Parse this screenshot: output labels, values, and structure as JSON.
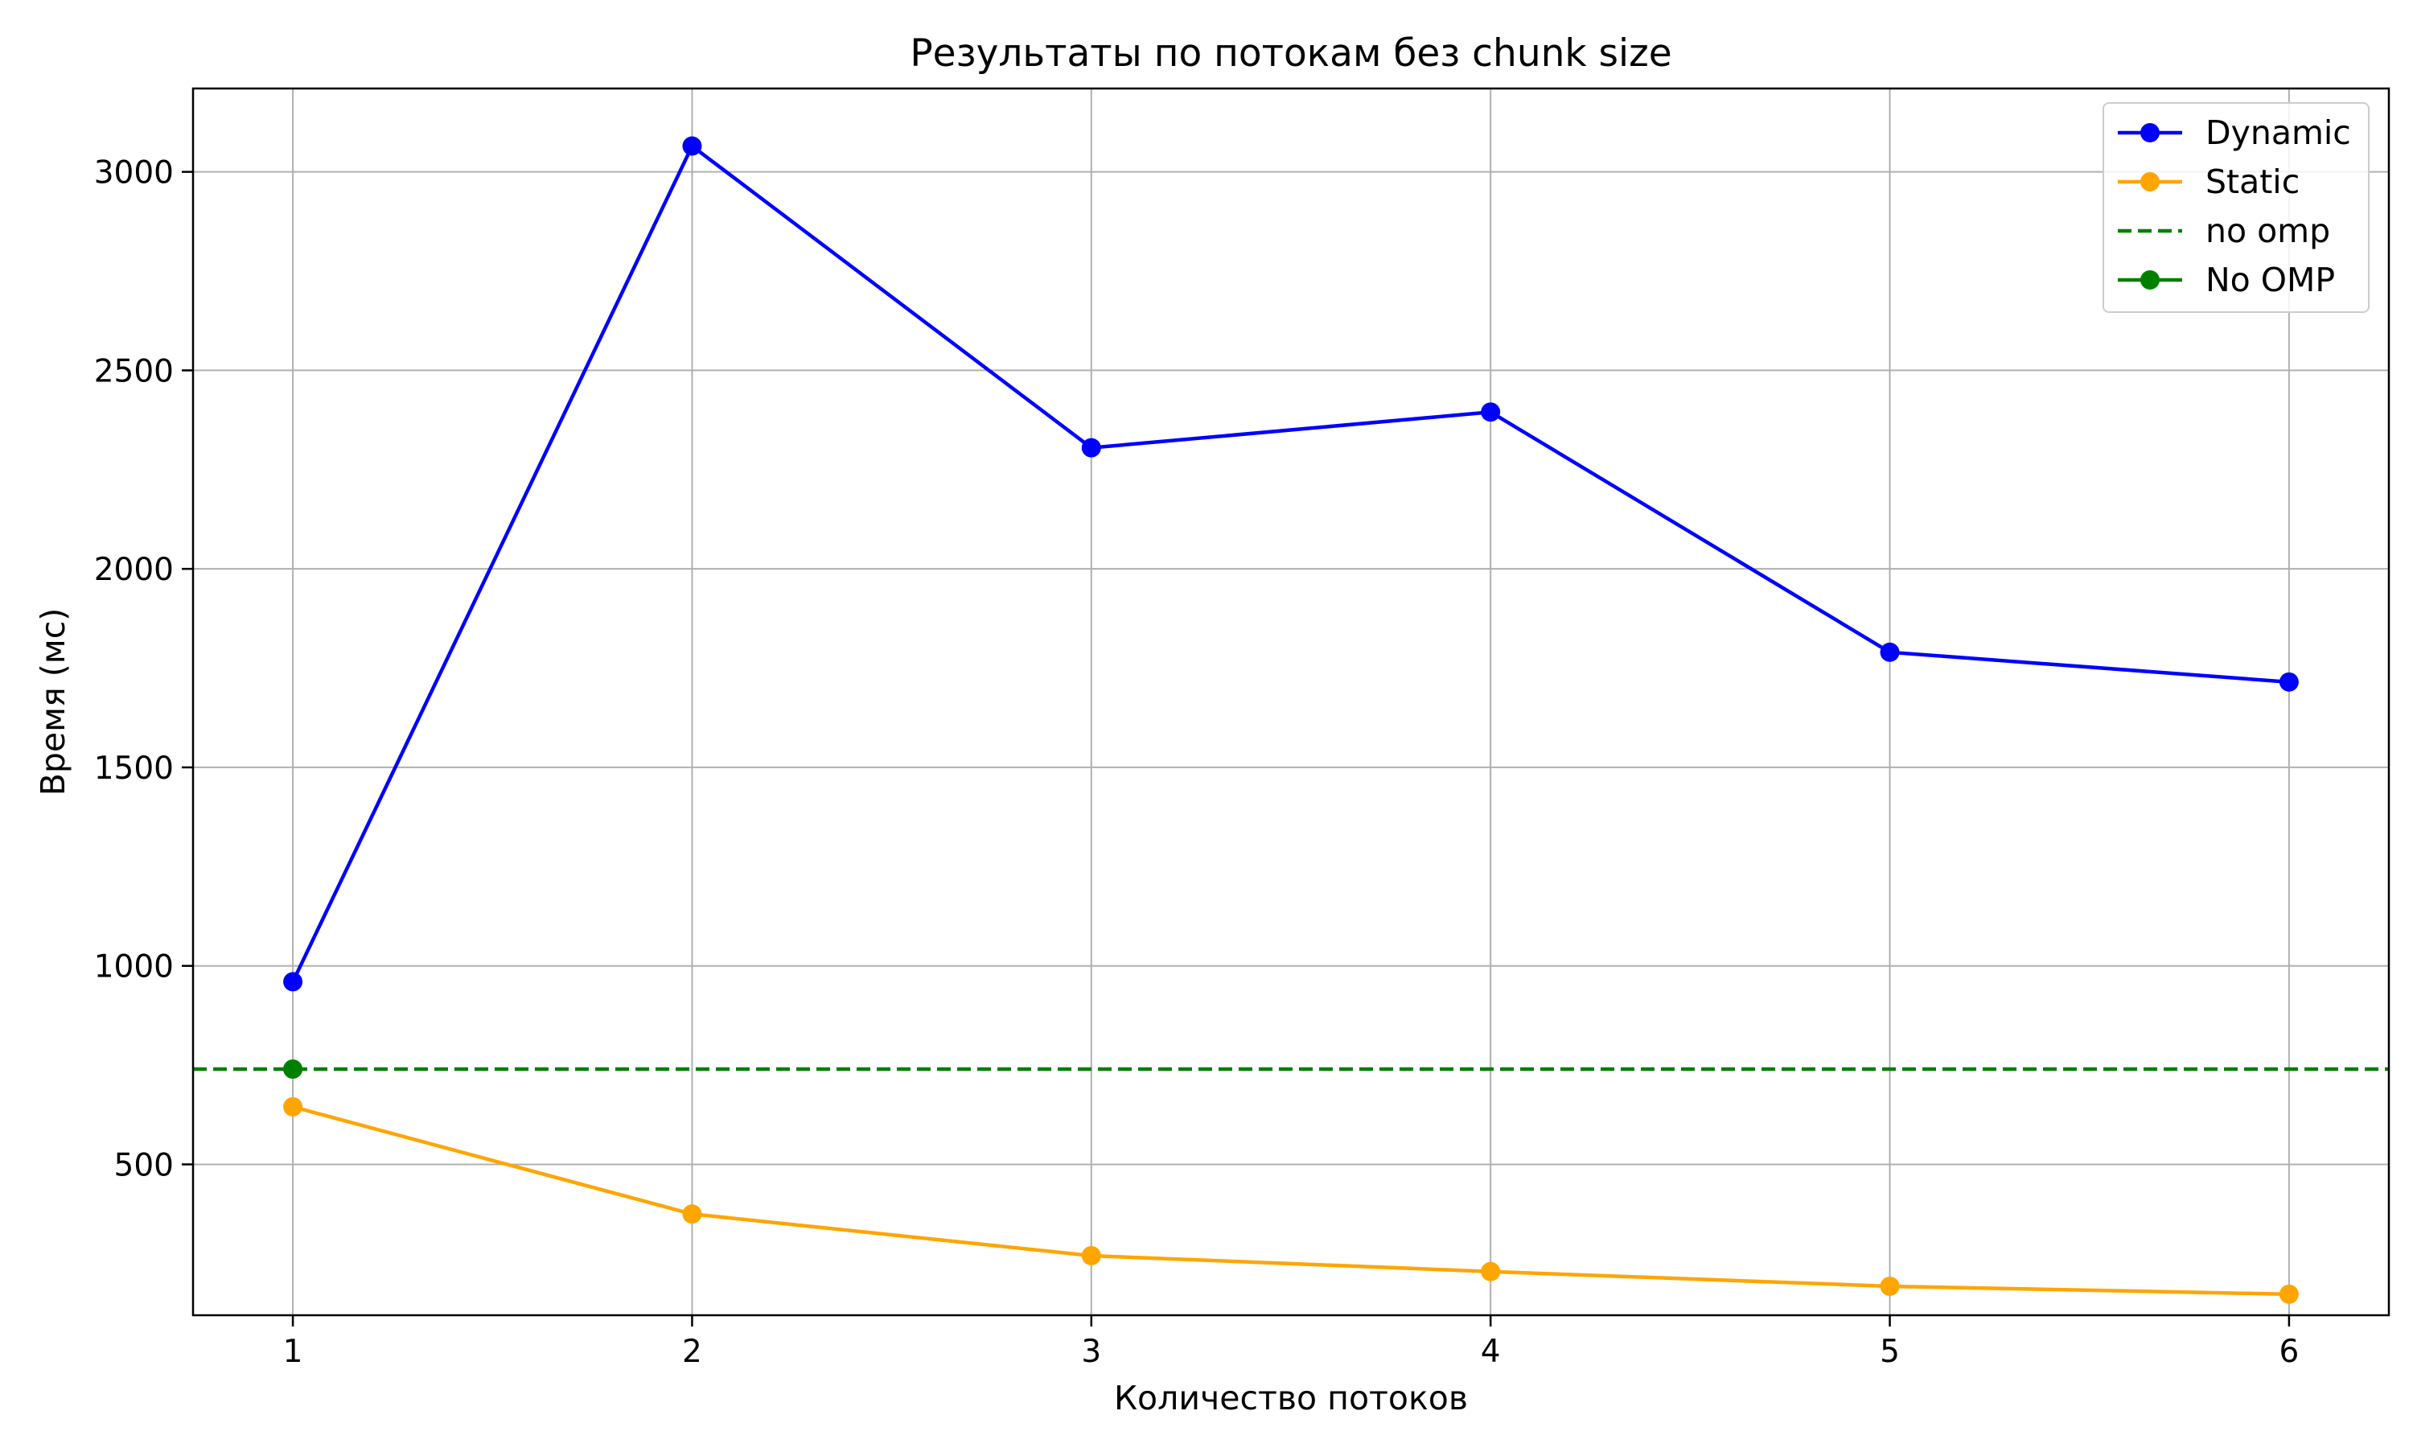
{
  "chart_data": {
    "type": "line",
    "title": "Результаты по потокам без chunk size",
    "xlabel": "Количество потоков",
    "ylabel": "Время (мс)",
    "x": [
      1,
      2,
      3,
      4,
      5,
      6
    ],
    "xlim": [
      0.75,
      6.25
    ],
    "ylim": [
      120,
      3210
    ],
    "xticks": [
      1,
      2,
      3,
      4,
      5,
      6
    ],
    "yticks": [
      500,
      1000,
      1500,
      2000,
      2500,
      3000
    ],
    "grid": true,
    "legend_position": "top-right",
    "series": [
      {
        "name": "Dynamic",
        "color": "#0000ff",
        "style": "solid-marker",
        "values": [
          960,
          3065,
          2305,
          2395,
          1790,
          1715
        ]
      },
      {
        "name": "Static",
        "color": "#ffa500",
        "style": "solid-marker",
        "values": [
          645,
          375,
          270,
          230,
          193,
          173
        ]
      },
      {
        "name": "no omp",
        "color": "#008000",
        "style": "dashed-hline",
        "value": 740
      },
      {
        "name": "No OMP",
        "color": "#008000",
        "style": "marker",
        "points": [
          {
            "x": 1,
            "y": 740
          }
        ]
      }
    ]
  }
}
